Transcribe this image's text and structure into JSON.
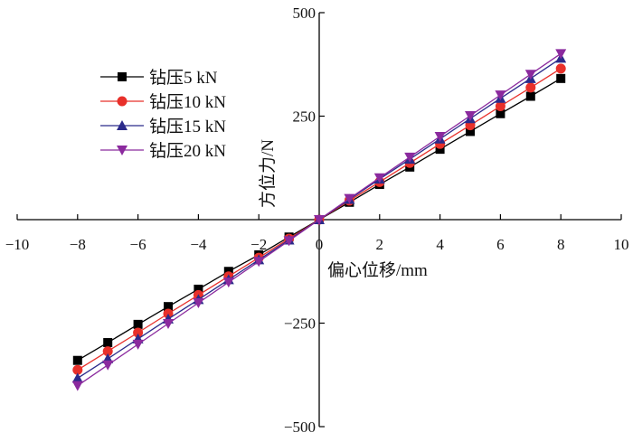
{
  "chart_data": {
    "type": "line",
    "title": "",
    "xlabel": "偏心位移/mm",
    "ylabel": "方位力/N",
    "xlim": [
      -10,
      10
    ],
    "ylim": [
      -500,
      500
    ],
    "x_ticks": [
      -10,
      -8,
      -6,
      -4,
      -2,
      0,
      2,
      4,
      6,
      8,
      10
    ],
    "x_tick_labels": [
      "−10",
      "−8",
      "−6",
      "−4",
      "−2",
      "0",
      "2",
      "4",
      "6",
      "8",
      "10"
    ],
    "y_ticks": [
      -500,
      -250,
      250,
      500
    ],
    "y_tick_labels": [
      "−500",
      "−250",
      "250",
      "500"
    ],
    "axes_through_origin": true,
    "grid": false,
    "legend_position": "upper-left",
    "x": [
      -8,
      -7,
      -6,
      -5,
      -4,
      -3,
      -2,
      -1,
      0,
      1,
      2,
      3,
      4,
      5,
      6,
      7,
      8
    ],
    "series": [
      {
        "name": "钻压5 kN",
        "color": "#000000",
        "marker": "square",
        "values": [
          -340,
          -297,
          -253,
          -210,
          -168,
          -125,
          -85,
          -42,
          0,
          42,
          85,
          127,
          170,
          213,
          256,
          298,
          341
        ]
      },
      {
        "name": "钻压10 kN",
        "color": "#e8302a",
        "marker": "circle",
        "values": [
          -363,
          -318,
          -273,
          -227,
          -182,
          -137,
          -92,
          -46,
          0,
          46,
          91,
          137,
          183,
          228,
          274,
          319,
          365
        ]
      },
      {
        "name": "钻压15 kN",
        "color": "#2b2a8a",
        "marker": "triangle-up",
        "values": [
          -383,
          -336,
          -288,
          -240,
          -193,
          -145,
          -97,
          -49,
          0,
          49,
          98,
          146,
          195,
          244,
          293,
          341,
          390
        ]
      },
      {
        "name": "钻压20 kN",
        "color": "#8b2a9e",
        "marker": "triangle-down",
        "values": [
          -401,
          -351,
          -301,
          -251,
          -201,
          -151,
          -101,
          -51,
          0,
          51,
          101,
          151,
          201,
          251,
          301,
          351,
          401
        ]
      }
    ]
  }
}
